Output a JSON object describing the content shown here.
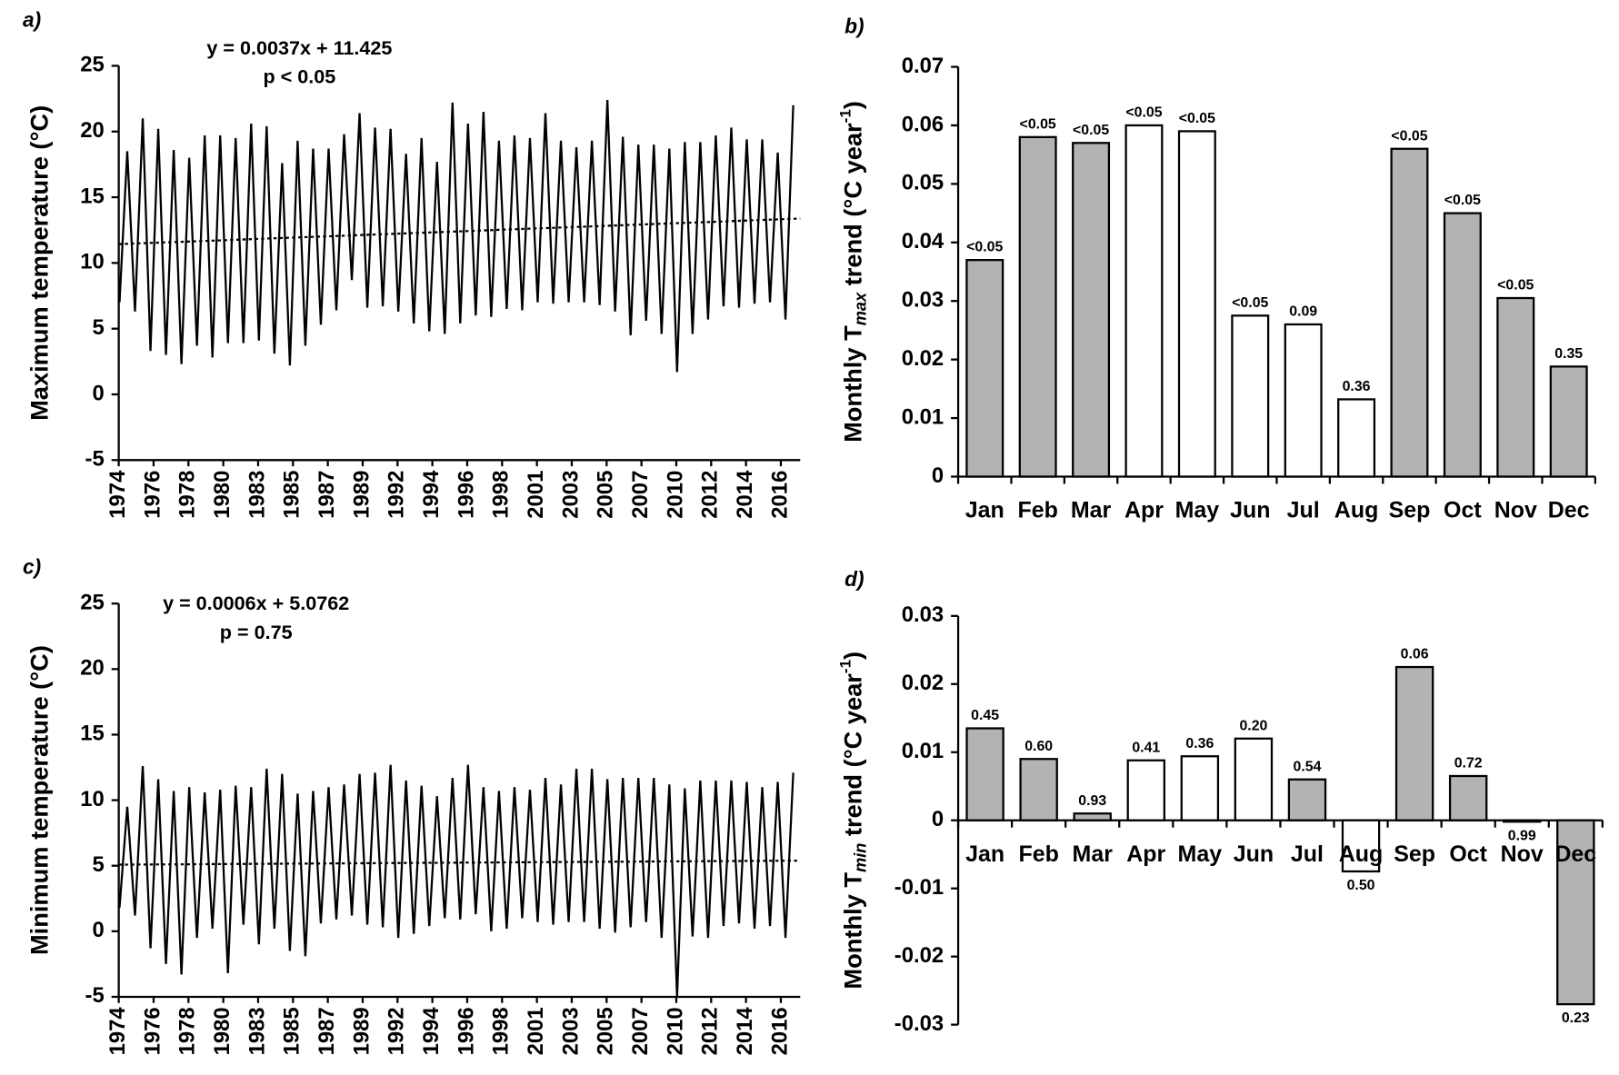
{
  "chart_data": [
    {
      "type": "line",
      "panel_label": "a)",
      "ylabel": "Maximum temperature (°C)",
      "annotations": [
        "y = 0.0037x + 11.425",
        "p < 0.05"
      ],
      "x": [
        1974.05,
        1974.55,
        1975.05,
        1975.55,
        1976.05,
        1976.55,
        1977.05,
        1977.55,
        1978.05,
        1978.55,
        1979.05,
        1979.55,
        1980.05,
        1980.55,
        1981.05,
        1981.55,
        1982.05,
        1982.55,
        1983.05,
        1983.55,
        1984.05,
        1984.55,
        1985.05,
        1985.55,
        1986.05,
        1986.55,
        1987.05,
        1987.55,
        1988.05,
        1988.55,
        1989.05,
        1989.55,
        1990.05,
        1990.55,
        1991.05,
        1991.55,
        1992.05,
        1992.55,
        1993.05,
        1993.55,
        1994.05,
        1994.55,
        1995.05,
        1995.55,
        1996.05,
        1996.55,
        1997.05,
        1997.55,
        1998.05,
        1998.55,
        1999.05,
        1999.55,
        2000.05,
        2000.55,
        2001.05,
        2001.55,
        2002.05,
        2002.55,
        2003.05,
        2003.55,
        2004.05,
        2004.55,
        2005.05,
        2005.55,
        2006.05,
        2006.55,
        2007.05,
        2007.55,
        2008.05,
        2008.55,
        2009.05,
        2009.55,
        2010.05,
        2010.55,
        2011.05,
        2011.55,
        2012.05,
        2012.55,
        2013.05,
        2013.55,
        2014.05,
        2014.55,
        2015.05,
        2015.55,
        2016.05,
        2016.55,
        2017.05,
        2017.55
      ],
      "series": [
        {
          "color": "#000000",
          "values": [
            7,
            18.5,
            6.3,
            21,
            3.3,
            20.2,
            3,
            18.6,
            2.3,
            18,
            3.7,
            19.7,
            2.8,
            19.7,
            3.9,
            19.5,
            3.9,
            20.6,
            4.1,
            20.4,
            3.1,
            17.6,
            2.2,
            19.3,
            3.7,
            18.7,
            5.3,
            18.7,
            6.4,
            19.8,
            8.7,
            21.4,
            6.6,
            20.3,
            6.7,
            20.2,
            6.3,
            18.3,
            5.4,
            19.5,
            4.8,
            17.7,
            4.6,
            22.2,
            5.4,
            20.6,
            6,
            21.5,
            5.9,
            19.3,
            6.5,
            19.7,
            6.4,
            19.5,
            7,
            21.4,
            6.9,
            19.3,
            7,
            18.8,
            7,
            19.3,
            6.8,
            22.4,
            6.3,
            19.6,
            4.5,
            19,
            5.6,
            19,
            4.6,
            18.7,
            1.7,
            19.2,
            4.6,
            19.2,
            5.7,
            19.7,
            6.7,
            20.3,
            6.6,
            19.4,
            6.9,
            19.4,
            7,
            18.4,
            5.7,
            22
          ]
        }
      ],
      "trendline": {
        "x": [
          1974,
          2018
        ],
        "y": [
          11.43,
          13.38
        ]
      },
      "xlim": [
        1974,
        2018
      ],
      "xticks": [
        {
          "value": 1974,
          "label": "1974"
        },
        {
          "value": 1976.25,
          "label": "1976"
        },
        {
          "value": 1978.5,
          "label": "1978"
        },
        {
          "value": 1980.75,
          "label": "1980"
        },
        {
          "value": 1983,
          "label": "1983"
        },
        {
          "value": 1985.25,
          "label": "1985"
        },
        {
          "value": 1987.5,
          "label": "1987"
        },
        {
          "value": 1989.75,
          "label": "1989"
        },
        {
          "value": 1992,
          "label": "1992"
        },
        {
          "value": 1994.25,
          "label": "1994"
        },
        {
          "value": 1996.5,
          "label": "1996"
        },
        {
          "value": 1998.75,
          "label": "1998"
        },
        {
          "value": 2001,
          "label": "2001"
        },
        {
          "value": 2003.25,
          "label": "2003"
        },
        {
          "value": 2005.5,
          "label": "2005"
        },
        {
          "value": 2007.75,
          "label": "2007"
        },
        {
          "value": 2010,
          "label": "2010"
        },
        {
          "value": 2012.25,
          "label": "2012"
        },
        {
          "value": 2014.5,
          "label": "2014"
        },
        {
          "value": 2016.75,
          "label": "2016"
        }
      ],
      "ylim": [
        -5,
        25
      ],
      "yticks": [
        -5,
        0,
        5,
        10,
        15,
        20,
        25
      ]
    },
    {
      "type": "bar",
      "panel_label": "b)",
      "ylabel": [
        "Monthly T",
        "max",
        " trend (°C year",
        "-1",
        ")"
      ],
      "categories": [
        "Jan",
        "Feb",
        "Mar",
        "Apr",
        "May",
        "Jun",
        "Jul",
        "Aug",
        "Sep",
        "Oct",
        "Nov",
        "Dec"
      ],
      "values": [
        0.037,
        0.058,
        0.057,
        0.06,
        0.059,
        0.0275,
        0.026,
        0.0132,
        0.056,
        0.045,
        0.0305,
        0.0188
      ],
      "colors": [
        "#b3b3b3",
        "#b3b3b3",
        "#b3b3b3",
        "#ffffff",
        "#ffffff",
        "#ffffff",
        "#ffffff",
        "#ffffff",
        "#b3b3b3",
        "#b3b3b3",
        "#b3b3b3",
        "#b3b3b3"
      ],
      "bar_labels": [
        "<0.05",
        "<0.05",
        "<0.05",
        "<0.05",
        "<0.05",
        "<0.05",
        "0.09",
        "0.36",
        "<0.05",
        "<0.05",
        "<0.05",
        "0.35"
      ],
      "ylim": [
        0,
        0.07
      ],
      "yticks": [
        0,
        0.01,
        0.02,
        0.03,
        0.04,
        0.05,
        0.06,
        0.07
      ]
    },
    {
      "type": "line",
      "panel_label": "c)",
      "ylabel": "Minimum temperature (°C)",
      "annotations": [
        "y = 0.0006x + 5.0762",
        "p = 0.75"
      ],
      "x": [
        1974.05,
        1974.55,
        1975.05,
        1975.55,
        1976.05,
        1976.55,
        1977.05,
        1977.55,
        1978.05,
        1978.55,
        1979.05,
        1979.55,
        1980.05,
        1980.55,
        1981.05,
        1981.55,
        1982.05,
        1982.55,
        1983.05,
        1983.55,
        1984.05,
        1984.55,
        1985.05,
        1985.55,
        1986.05,
        1986.55,
        1987.05,
        1987.55,
        1988.05,
        1988.55,
        1989.05,
        1989.55,
        1990.05,
        1990.55,
        1991.05,
        1991.55,
        1992.05,
        1992.55,
        1993.05,
        1993.55,
        1994.05,
        1994.55,
        1995.05,
        1995.55,
        1996.05,
        1996.55,
        1997.05,
        1997.55,
        1998.05,
        1998.55,
        1999.05,
        1999.55,
        2000.05,
        2000.55,
        2001.05,
        2001.55,
        2002.05,
        2002.55,
        2003.05,
        2003.55,
        2004.05,
        2004.55,
        2005.05,
        2005.55,
        2006.05,
        2006.55,
        2007.05,
        2007.55,
        2008.05,
        2008.55,
        2009.05,
        2009.55,
        2010.05,
        2010.55,
        2011.05,
        2011.55,
        2012.05,
        2012.55,
        2013.05,
        2013.55,
        2014.05,
        2014.55,
        2015.05,
        2015.55,
        2016.05,
        2016.55,
        2017.05,
        2017.55
      ],
      "series": [
        {
          "color": "#000000",
          "values": [
            1.8,
            9.5,
            1.2,
            12.6,
            -1.3,
            11.6,
            -2.5,
            10.7,
            -3.3,
            11,
            -0.5,
            10.6,
            0.2,
            10.8,
            -3.2,
            11.1,
            0.5,
            11,
            -1,
            12.4,
            0.2,
            12,
            -1.5,
            10.5,
            -1.9,
            10.7,
            0.6,
            11,
            0.9,
            11.2,
            1.2,
            12,
            0.5,
            12.1,
            0.3,
            12.7,
            -0.5,
            11.5,
            -0.2,
            11.1,
            0.4,
            10.3,
            1,
            11.7,
            0.9,
            12.7,
            1.3,
            11,
            0,
            10.7,
            0.2,
            11,
            1,
            10.8,
            0.7,
            11.7,
            0.5,
            11.2,
            0.7,
            12.4,
            0.7,
            12.4,
            0.2,
            11.6,
            -0.1,
            11.7,
            0.3,
            11.7,
            0.7,
            11.7,
            -0.5,
            11.2,
            -5,
            10.9,
            -0.4,
            11.5,
            -0.5,
            11.5,
            0.4,
            11.5,
            0.6,
            11.4,
            0.2,
            11,
            0.4,
            11.4,
            -0.5,
            12.1
          ]
        }
      ],
      "trendline": {
        "x": [
          1974,
          2018
        ],
        "y": [
          5.08,
          5.39
        ]
      },
      "xlim": [
        1974,
        2018
      ],
      "xticks": [
        {
          "value": 1974,
          "label": "1974"
        },
        {
          "value": 1976.25,
          "label": "1976"
        },
        {
          "value": 1978.5,
          "label": "1978"
        },
        {
          "value": 1980.75,
          "label": "1980"
        },
        {
          "value": 1983,
          "label": "1983"
        },
        {
          "value": 1985.25,
          "label": "1985"
        },
        {
          "value": 1987.5,
          "label": "1987"
        },
        {
          "value": 1989.75,
          "label": "1989"
        },
        {
          "value": 1992,
          "label": "1992"
        },
        {
          "value": 1994.25,
          "label": "1994"
        },
        {
          "value": 1996.5,
          "label": "1996"
        },
        {
          "value": 1998.75,
          "label": "1998"
        },
        {
          "value": 2001,
          "label": "2001"
        },
        {
          "value": 2003.25,
          "label": "2003"
        },
        {
          "value": 2005.5,
          "label": "2005"
        },
        {
          "value": 2007.75,
          "label": "2007"
        },
        {
          "value": 2010,
          "label": "2010"
        },
        {
          "value": 2012.25,
          "label": "2012"
        },
        {
          "value": 2014.5,
          "label": "2014"
        },
        {
          "value": 2016.75,
          "label": "2016"
        }
      ],
      "ylim": [
        -5,
        25
      ],
      "yticks": [
        -5,
        0,
        5,
        10,
        15,
        20,
        25
      ]
    },
    {
      "type": "bar",
      "panel_label": "d)",
      "ylabel": [
        "Monthly T",
        "min",
        " trend (°C year",
        "-1",
        ")"
      ],
      "categories": [
        "Jan",
        "Feb",
        "Mar",
        "Apr",
        "May",
        "Jun",
        "Jul",
        "Aug",
        "Sep",
        "Oct",
        "Nov",
        "Dec"
      ],
      "values": [
        0.0135,
        0.009,
        0.001,
        0.0088,
        0.0094,
        0.012,
        0.006,
        -0.0075,
        0.0225,
        0.0065,
        -0.0002,
        -0.027
      ],
      "colors": [
        "#b3b3b3",
        "#b3b3b3",
        "#b3b3b3",
        "#ffffff",
        "#ffffff",
        "#ffffff",
        "#b3b3b3",
        "#ffffff",
        "#b3b3b3",
        "#b3b3b3",
        "#ffffff",
        "#b3b3b3"
      ],
      "bar_labels": [
        "0.45",
        "0.60",
        "0.93",
        "0.41",
        "0.36",
        "0.20",
        "0.54",
        "0.50",
        "0.06",
        "0.72",
        "0.99",
        "0.23"
      ],
      "ylim": [
        -0.03,
        0.03
      ],
      "yticks": [
        -0.03,
        -0.02,
        -0.01,
        0,
        0.01,
        0.02,
        0.03
      ]
    }
  ]
}
